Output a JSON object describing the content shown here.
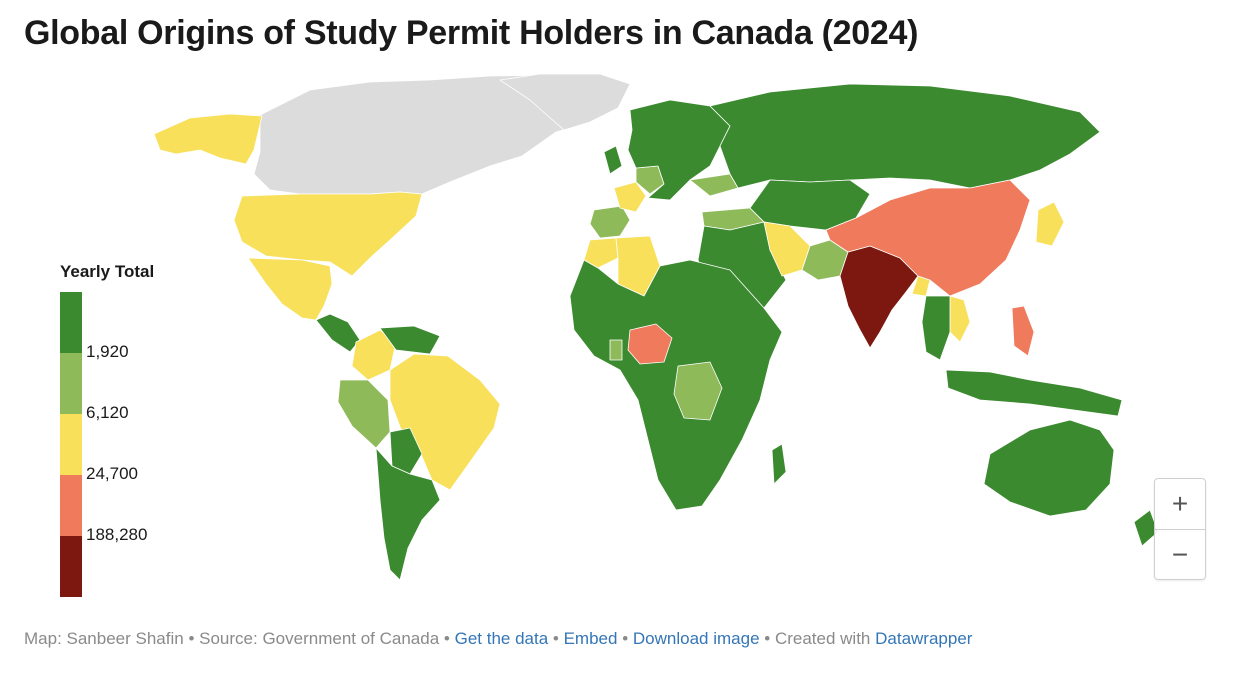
{
  "title": "Global Origins of Study Permit Holders in Canada (2024)",
  "legend": {
    "title": "Yearly Total",
    "ticks": [
      "1,920",
      "6,120",
      "24,700",
      "188,280"
    ],
    "bins": [
      {
        "color": "#3b8a2f"
      },
      {
        "color": "#8fba5a"
      },
      {
        "color": "#f8e05a"
      },
      {
        "color": "#ef7a5c"
      },
      {
        "color": "#7d1811"
      }
    ],
    "no_data_color": "#dcdcdc"
  },
  "zoom": {
    "in_label": "+",
    "out_label": "−"
  },
  "footer": {
    "credit": "Map: Sanbeer Shafin",
    "source": "Source: Government of Canada",
    "get_data": "Get the data",
    "embed": "Embed",
    "download": "Download image",
    "created_with": "Created with",
    "datawrapper": "Datawrapper",
    "separator": "•"
  },
  "map_data": {
    "bins_by_region": {
      "india": 4,
      "china": 3,
      "nigeria": 3,
      "philippines": 3,
      "usa": 2,
      "mexico": 2,
      "brazil": 2,
      "iran": 2,
      "france": 2,
      "algeria": 2,
      "vietnam": 2,
      "japan": 2,
      "colombia": 2,
      "bangladesh": 2,
      "alaska": 2,
      "morocco": 2,
      "pakistan": 1,
      "peru": 1,
      "spain": 1,
      "turkey": 1,
      "dr-congo": 1,
      "germany": 1,
      "ukraine": 1,
      "ghana": 1,
      "russia": 0,
      "australia": 0,
      "argentina": 0,
      "africa-rest": 0,
      "europe-rest": 0,
      "middle-east": 0,
      "central-asia": 0,
      "southeast-asia": 0,
      "indonesia": 0,
      "new-zealand": 0,
      "madagascar": 0,
      "greenland-none": -1,
      "canada-none": -1
    }
  }
}
